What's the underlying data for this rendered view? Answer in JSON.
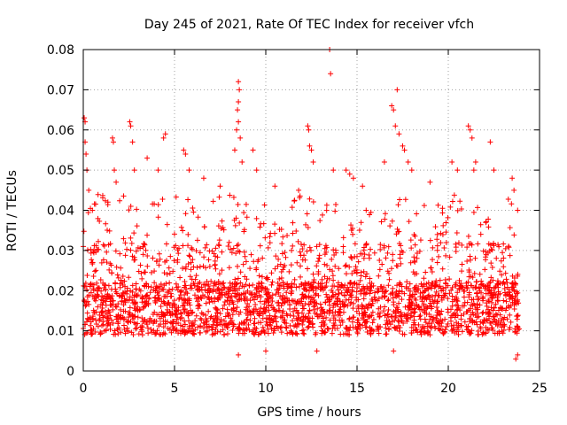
{
  "chart_data": {
    "type": "scatter",
    "title": "Day 245 of 2021, Rate Of TEC Index for receiver vfch",
    "xlabel": "GPS time / hours",
    "ylabel": "ROTI / TECUs",
    "xlim": [
      0,
      25
    ],
    "ylim": [
      0,
      0.08
    ],
    "x_ticks": [
      0,
      5,
      10,
      15,
      20,
      25
    ],
    "x_tick_labels": [
      "0",
      "5",
      "10",
      "15",
      "20",
      "25"
    ],
    "y_ticks": [
      0,
      0.01,
      0.02,
      0.03,
      0.04,
      0.05,
      0.06,
      0.07,
      0.08
    ],
    "y_tick_labels": [
      "0",
      "0.01",
      "0.02",
      "0.03",
      "0.04",
      "0.05",
      "0.06",
      "0.07",
      "0.08"
    ],
    "grid": true,
    "marker": "+",
    "color": "#ff0000",
    "series": [
      {
        "name": "ROTI",
        "x_range": [
          0,
          23.9
        ],
        "baseline_band": [
          0.009,
          0.022
        ],
        "points": [
          [
            0.05,
            0.063
          ],
          [
            0.1,
            0.062
          ],
          [
            0.1,
            0.057
          ],
          [
            0.15,
            0.054
          ],
          [
            0.2,
            0.05
          ],
          [
            0.3,
            0.045
          ],
          [
            0.5,
            0.04
          ],
          [
            1.6,
            0.058
          ],
          [
            1.65,
            0.057
          ],
          [
            1.7,
            0.05
          ],
          [
            1.8,
            0.047
          ],
          [
            2.55,
            0.062
          ],
          [
            2.6,
            0.061
          ],
          [
            2.7,
            0.057
          ],
          [
            2.8,
            0.05
          ],
          [
            3.5,
            0.053
          ],
          [
            4.4,
            0.058
          ],
          [
            4.5,
            0.059
          ],
          [
            4.1,
            0.05
          ],
          [
            5.5,
            0.055
          ],
          [
            5.6,
            0.054
          ],
          [
            5.8,
            0.05
          ],
          [
            6.6,
            0.048
          ],
          [
            7.5,
            0.046
          ],
          [
            8.5,
            0.072
          ],
          [
            8.55,
            0.07
          ],
          [
            8.5,
            0.067
          ],
          [
            8.45,
            0.065
          ],
          [
            8.5,
            0.062
          ],
          [
            8.4,
            0.06
          ],
          [
            8.6,
            0.058
          ],
          [
            8.3,
            0.055
          ],
          [
            8.7,
            0.052
          ],
          [
            9.3,
            0.055
          ],
          [
            9.5,
            0.05
          ],
          [
            10.5,
            0.046
          ],
          [
            11.8,
            0.045
          ],
          [
            12.3,
            0.061
          ],
          [
            12.35,
            0.06
          ],
          [
            12.4,
            0.056
          ],
          [
            12.5,
            0.055
          ],
          [
            12.6,
            0.052
          ],
          [
            13.5,
            0.08
          ],
          [
            13.55,
            0.074
          ],
          [
            13.7,
            0.05
          ],
          [
            14.4,
            0.05
          ],
          [
            14.6,
            0.049
          ],
          [
            14.8,
            0.048
          ],
          [
            15.3,
            0.046
          ],
          [
            16.5,
            0.052
          ],
          [
            16.9,
            0.066
          ],
          [
            17.0,
            0.065
          ],
          [
            17.2,
            0.07
          ],
          [
            17.1,
            0.061
          ],
          [
            17.3,
            0.059
          ],
          [
            17.5,
            0.056
          ],
          [
            17.6,
            0.055
          ],
          [
            17.8,
            0.052
          ],
          [
            18.0,
            0.05
          ],
          [
            19.0,
            0.047
          ],
          [
            20.2,
            0.052
          ],
          [
            20.5,
            0.05
          ],
          [
            21.1,
            0.061
          ],
          [
            21.2,
            0.06
          ],
          [
            21.3,
            0.058
          ],
          [
            21.4,
            0.05
          ],
          [
            21.5,
            0.052
          ],
          [
            22.3,
            0.057
          ],
          [
            22.5,
            0.05
          ],
          [
            23.5,
            0.048
          ],
          [
            23.6,
            0.045
          ],
          [
            23.8,
            0.04
          ],
          [
            8.5,
            0.004
          ],
          [
            10.0,
            0.005
          ],
          [
            12.8,
            0.005
          ],
          [
            17.0,
            0.005
          ],
          [
            23.7,
            0.003
          ],
          [
            23.8,
            0.004
          ],
          [
            0.0,
            0.031
          ],
          [
            15.5,
            0.04
          ]
        ]
      }
    ]
  }
}
